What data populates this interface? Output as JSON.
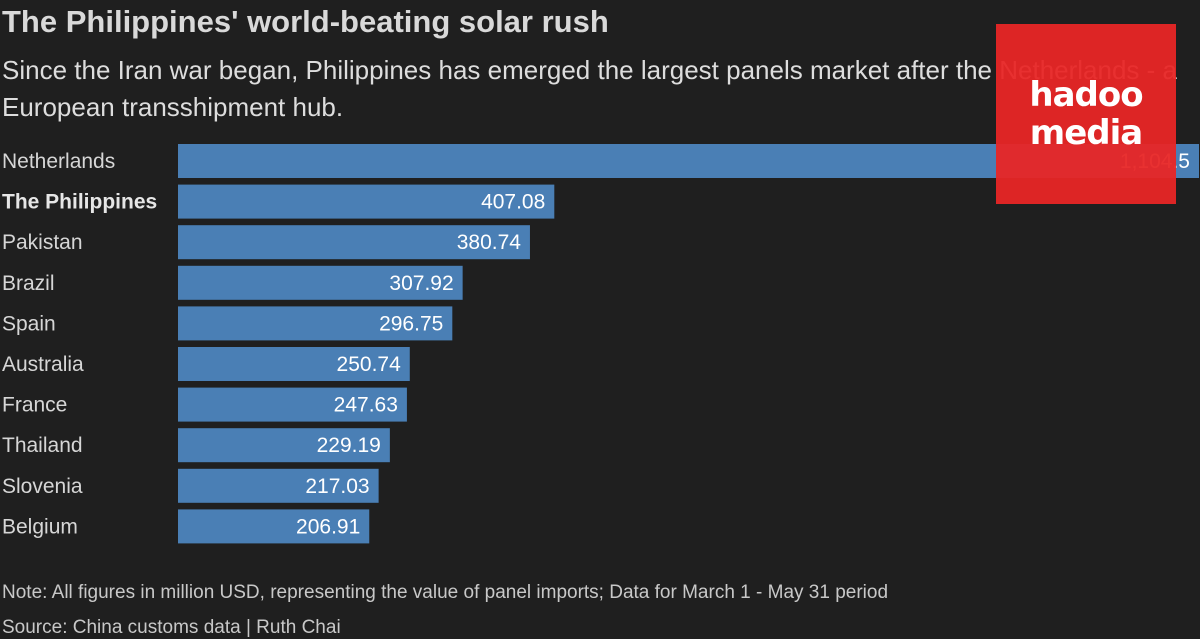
{
  "header": {
    "title": "The Philippines' world-beating solar rush",
    "subtitle": "Since the Iran war began, Philippines has emerged the largest panels market after the Netherlands - a European transshipment hub."
  },
  "footer": {
    "note": "Note: All figures in million USD, representing the value of panel imports; Data for March 1 - May 31 period",
    "source": "Source: China customs data | Ruth Chai"
  },
  "watermark": {
    "line1": "hadoo",
    "line2": "media",
    "color": "#e82626"
  },
  "colors": {
    "bar": "#4a7fb5",
    "background": "#1f1f1f",
    "text": "#d6d6d6"
  },
  "chart_data": {
    "type": "bar",
    "orientation": "horizontal",
    "categories": [
      "Netherlands",
      "The Philippines",
      "Pakistan",
      "Brazil",
      "Spain",
      "Australia",
      "France",
      "Thailand",
      "Slovenia",
      "Belgium"
    ],
    "values": [
      1104.5,
      407.08,
      380.74,
      307.92,
      296.75,
      250.74,
      247.63,
      229.19,
      217.03,
      206.91
    ],
    "value_labels": [
      "1,104.5",
      "407.08",
      "380.74",
      "307.92",
      "296.75",
      "250.74",
      "247.63",
      "229.19",
      "217.03",
      "206.91"
    ],
    "highlighted_category": "The Philippines",
    "xlim": [
      0,
      1104.5
    ]
  }
}
